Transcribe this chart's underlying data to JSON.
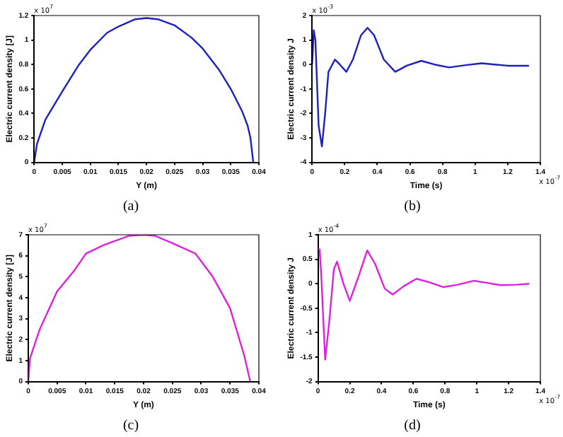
{
  "chart_data": [
    {
      "type": "line",
      "title": "(a)",
      "xlabel": "Y (m)",
      "ylabel": "Electric current density [J]",
      "annotations": [
        "x 10$^{7}$"
      ],
      "x": [
        0,
        0.0005,
        0.002,
        0.005,
        0.008,
        0.01,
        0.013,
        0.015,
        0.018,
        0.02,
        0.022,
        0.025,
        0.028,
        0.03,
        0.033,
        0.035,
        0.037,
        0.038,
        0.0385,
        0.039
      ],
      "series": [
        {
          "color": "#1f1fbf",
          "values": [
            0,
            0.15,
            0.35,
            0.58,
            0.8,
            0.92,
            1.06,
            1.11,
            1.17,
            1.18,
            1.17,
            1.12,
            1.02,
            0.93,
            0.75,
            0.6,
            0.42,
            0.3,
            0.2,
            0
          ]
        }
      ],
      "xlim": [
        0,
        0.04
      ],
      "xticks": [
        0,
        0.005,
        0.01,
        0.015,
        0.02,
        0.025,
        0.03,
        0.035,
        0.04
      ],
      "ylim": [
        0,
        1.2
      ],
      "yticks": [
        0,
        0.2,
        0.4,
        0.6,
        0.8,
        1,
        1.2
      ],
      "grid": false,
      "legend": false,
      "marker": "none",
      "line_style": "solid"
    },
    {
      "type": "line",
      "title": "(b)",
      "xlabel": "Time (s)",
      "ylabel": "Electric current density J",
      "annotations": [
        "x 10$^{-3}$",
        "x 10$^{-7}$"
      ],
      "x": [
        0,
        0.01,
        0.02,
        0.04,
        0.06,
        0.08,
        0.1,
        0.14,
        0.17,
        0.21,
        0.25,
        0.3,
        0.34,
        0.38,
        0.44,
        0.51,
        0.58,
        0.67,
        0.75,
        0.84,
        0.95,
        1.04,
        1.12,
        1.2,
        1.33
      ],
      "series": [
        {
          "color": "#1f1fbf",
          "values": [
            0,
            1.4,
            1.0,
            -2.5,
            -3.35,
            -2.0,
            -0.3,
            0.2,
            0.0,
            -0.3,
            0.2,
            1.2,
            1.5,
            1.2,
            0.2,
            -0.3,
            -0.05,
            0.15,
            0.0,
            -0.12,
            -0.02,
            0.05,
            0.0,
            -0.05,
            -0.05
          ]
        }
      ],
      "xlim": [
        0,
        1.4
      ],
      "xticks": [
        0,
        0.2,
        0.4,
        0.6,
        0.8,
        1,
        1.2,
        1.4
      ],
      "ylim": [
        -4,
        2
      ],
      "yticks": [
        -4,
        -3,
        -2,
        -1,
        0,
        1,
        2
      ],
      "grid": false,
      "legend": false,
      "marker": "none",
      "line_style": "solid"
    },
    {
      "type": "line",
      "title": "(c)",
      "xlabel": "Y (m)",
      "ylabel": "Electric current density [J]",
      "annotations": [
        "x 10$^{7}$"
      ],
      "x": [
        0,
        0.0003,
        0.002,
        0.005,
        0.008,
        0.01,
        0.013,
        0.0175,
        0.02,
        0.022,
        0.025,
        0.029,
        0.032,
        0.035,
        0.0375,
        0.0385
      ],
      "series": [
        {
          "color": "#e020e0",
          "values": [
            0,
            1.1,
            2.5,
            4.3,
            5.3,
            6.1,
            6.5,
            6.95,
            7.0,
            6.95,
            6.6,
            6.1,
            5.0,
            3.5,
            1.2,
            0
          ]
        }
      ],
      "xlim": [
        0,
        0.04
      ],
      "xticks": [
        0,
        0.005,
        0.01,
        0.015,
        0.02,
        0.025,
        0.03,
        0.035,
        0.04
      ],
      "ylim": [
        0,
        7
      ],
      "yticks": [
        0,
        1,
        2,
        3,
        4,
        5,
        6,
        7
      ],
      "grid": false,
      "legend": false,
      "marker": "none",
      "line_style": "solid"
    },
    {
      "type": "line",
      "title": "(d)",
      "xlabel": "Time (s)",
      "ylabel": "Electric current density J",
      "annotations": [
        "x 10$^{-4}$",
        "x 10$^{-7}$"
      ],
      "x": [
        0,
        0.01,
        0.02,
        0.045,
        0.07,
        0.1,
        0.12,
        0.16,
        0.2,
        0.25,
        0.31,
        0.36,
        0.42,
        0.47,
        0.54,
        0.62,
        0.7,
        0.79,
        0.88,
        0.98,
        1.06,
        1.15,
        1.25,
        1.33
      ],
      "series": [
        {
          "color": "#e020e0",
          "values": [
            0.7,
            0.7,
            0.2,
            -1.55,
            -0.8,
            0.3,
            0.45,
            0.0,
            -0.35,
            0.1,
            0.68,
            0.4,
            -0.1,
            -0.22,
            -0.05,
            0.1,
            0.03,
            -0.07,
            -0.02,
            0.06,
            0.02,
            -0.03,
            -0.02,
            0.0
          ]
        }
      ],
      "xlim": [
        0,
        1.4
      ],
      "xticks": [
        0,
        0.2,
        0.4,
        0.6,
        0.8,
        1,
        1.2,
        1.4
      ],
      "ylim": [
        -2,
        1
      ],
      "yticks": [
        -2,
        -1.5,
        -1,
        -0.5,
        0,
        0.5,
        1
      ],
      "grid": false,
      "legend": false,
      "marker": "none",
      "line_style": "solid"
    }
  ]
}
